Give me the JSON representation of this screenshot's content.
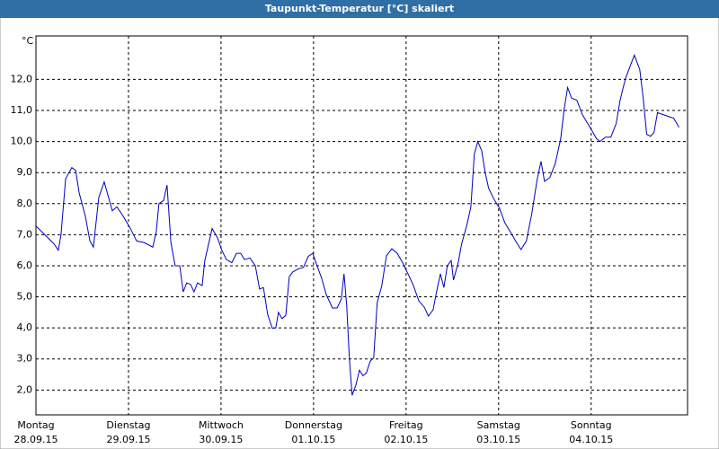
{
  "chart_data": {
    "type": "line",
    "title": "Taupunkt-Temperatur [°C] skaliert",
    "y_label": "°C",
    "x": [
      0,
      2.3,
      4.7,
      5.8,
      6.5,
      7.7,
      9.3,
      10.3,
      11.2,
      12.8,
      14.0,
      14.9,
      16.3,
      17.7,
      19.8,
      21.0,
      22.6,
      24.5,
      26.1,
      28.0,
      30.3,
      31.2,
      31.9,
      33.1,
      34.0,
      35.0,
      36.1,
      37.3,
      38.2,
      39.1,
      40.1,
      41.0,
      41.9,
      43.1,
      43.8,
      45.7,
      47.1,
      48.2,
      49.4,
      50.8,
      52.0,
      53.1,
      54.1,
      55.5,
      56.9,
      58.0,
      59.0,
      60.1,
      61.3,
      62.2,
      62.9,
      63.8,
      64.8,
      65.7,
      66.6,
      68.0,
      69.4,
      70.6,
      71.8,
      72.9,
      74.1,
      75.3,
      76.9,
      78.1,
      79.2,
      79.9,
      80.6,
      81.3,
      82.0,
      83.0,
      83.9,
      84.8,
      85.7,
      86.7,
      87.6,
      88.5,
      89.7,
      90.9,
      92.3,
      93.7,
      95.1,
      96.5,
      97.9,
      99.3,
      100.7,
      101.8,
      103.0,
      103.9,
      104.9,
      105.8,
      106.7,
      107.7,
      108.3,
      109.5,
      110.4,
      111.8,
      112.8,
      113.7,
      114.6,
      115.6,
      116.5,
      117.4,
      118.8,
      120.2,
      121.6,
      123.0,
      124.4,
      125.8,
      127.2,
      128.6,
      130.0,
      131.0,
      131.9,
      133.3,
      134.7,
      136.1,
      137.0,
      137.9,
      138.9,
      140.3,
      141.7,
      143.1,
      144.5,
      145.4,
      146.3,
      147.7,
      149.1,
      150.5,
      151.5,
      152.9,
      154.3,
      155.2,
      156.6,
      157.5,
      158.4,
      159.4,
      160.3,
      161.2,
      162.6,
      164.0,
      165.4,
      166.8
    ],
    "series": [
      {
        "name": "Taupunkt",
        "color": "#0000c0",
        "values": [
          7.28,
          7.0,
          6.7,
          6.5,
          7.0,
          8.8,
          9.16,
          9.07,
          8.35,
          7.6,
          6.8,
          6.6,
          8.2,
          8.7,
          7.77,
          7.9,
          7.6,
          7.2,
          6.8,
          6.75,
          6.6,
          7.1,
          8.0,
          8.1,
          8.6,
          6.75,
          6.0,
          6.0,
          5.16,
          5.45,
          5.4,
          5.16,
          5.45,
          5.36,
          6.17,
          7.2,
          6.9,
          6.5,
          6.2,
          6.1,
          6.4,
          6.4,
          6.2,
          6.25,
          6.0,
          5.25,
          5.3,
          4.43,
          3.99,
          4.0,
          4.5,
          4.3,
          4.4,
          5.65,
          5.8,
          5.9,
          5.95,
          6.3,
          6.4,
          6.0,
          5.6,
          5.07,
          4.64,
          4.64,
          4.93,
          5.74,
          4.72,
          2.99,
          1.83,
          2.17,
          2.64,
          2.46,
          2.55,
          2.93,
          3.04,
          4.81,
          5.36,
          6.32,
          6.55,
          6.4,
          6.1,
          5.74,
          5.36,
          4.87,
          4.67,
          4.38,
          4.58,
          5.16,
          5.74,
          5.3,
          6.0,
          6.17,
          5.54,
          6.09,
          6.7,
          7.33,
          7.9,
          9.6,
          10.0,
          9.71,
          9.01,
          8.5,
          8.14,
          7.86,
          7.39,
          7.1,
          6.8,
          6.52,
          6.8,
          7.68,
          8.78,
          9.36,
          8.72,
          8.84,
          9.3,
          10.09,
          11.04,
          11.74,
          11.4,
          11.33,
          10.87,
          10.58,
          10.29,
          10.09,
          10.0,
          10.14,
          10.14,
          10.58,
          11.33,
          12.03,
          12.49,
          12.78,
          12.32,
          11.4,
          10.23,
          10.17,
          10.29,
          10.93,
          10.87,
          10.81,
          10.75,
          10.46
        ]
      }
    ],
    "xlim": [
      0,
      169
    ],
    "ylim": [
      1.2,
      13.4
    ],
    "xticks": [
      {
        "value": 0,
        "label": "Montag",
        "date": "28.09.15"
      },
      {
        "value": 24,
        "label": "Dienstag",
        "date": "29.09.15"
      },
      {
        "value": 48,
        "label": "Mittwoch",
        "date": "30.09.15"
      },
      {
        "value": 72,
        "label": "Donnerstag",
        "date": "01.10.15"
      },
      {
        "value": 96,
        "label": "Freitag",
        "date": "02.10.15"
      },
      {
        "value": 120,
        "label": "Samstag",
        "date": "03.10.15"
      },
      {
        "value": 144,
        "label": "Sonntag",
        "date": "04.10.15"
      }
    ],
    "yticks": [
      {
        "value": 2,
        "label": "2,0"
      },
      {
        "value": 3,
        "label": "3,0"
      },
      {
        "value": 4,
        "label": "4,0"
      },
      {
        "value": 5,
        "label": "5,0"
      },
      {
        "value": 6,
        "label": "6,0"
      },
      {
        "value": 7,
        "label": "7,0"
      },
      {
        "value": 8,
        "label": "8,0"
      },
      {
        "value": 9,
        "label": "9,0"
      },
      {
        "value": 10,
        "label": "10,0"
      },
      {
        "value": 11,
        "label": "11,0"
      },
      {
        "value": 12,
        "label": "12,0"
      }
    ],
    "grid": true
  }
}
